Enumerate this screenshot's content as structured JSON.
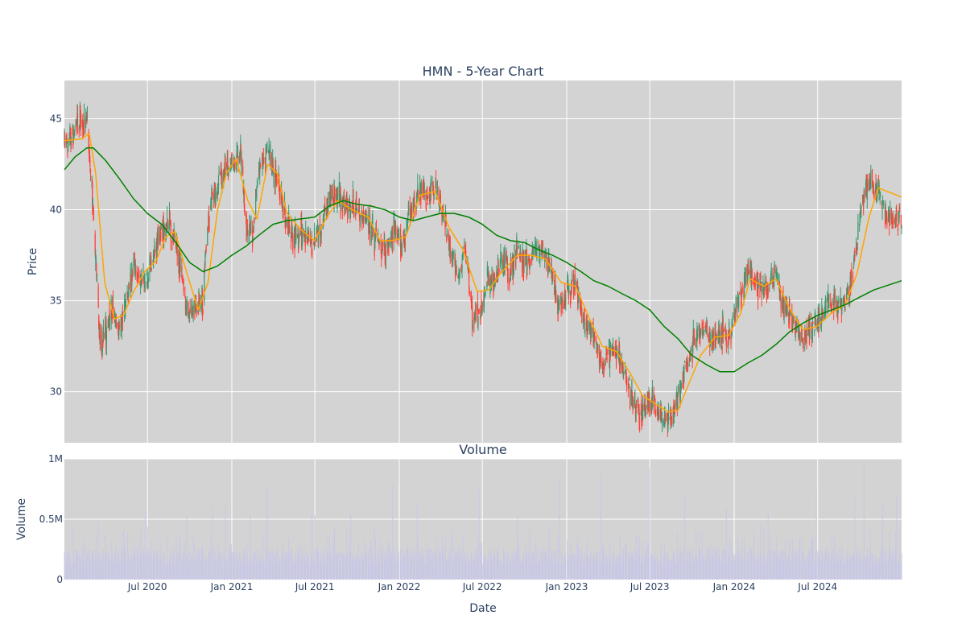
{
  "chart_data": [
    {
      "type": "candlestick",
      "title": "HMN - 5-Year Chart",
      "xlabel": "",
      "ylabel": "Price",
      "x_range": [
        "2020-01-02",
        "2024-12-31"
      ],
      "ylim": [
        27.2,
        47.1
      ],
      "y_ticks": [
        30,
        35,
        40,
        45
      ],
      "plot_background": "#d3d3d3",
      "grid": true,
      "up_color": "#3d9970",
      "down_color": "#ff4136",
      "overlays": [
        {
          "color": "#ffa500"
        },
        {
          "color": "#008000"
        }
      ],
      "price_path": [
        [
          "2020-01-02",
          43.6
        ],
        [
          "2020-01-20",
          44.2
        ],
        [
          "2020-02-05",
          44.8
        ],
        [
          "2020-02-20",
          45.1
        ],
        [
          "2020-03-02",
          41.0
        ],
        [
          "2020-03-12",
          36.0
        ],
        [
          "2020-03-20",
          32.5
        ],
        [
          "2020-04-01",
          33.5
        ],
        [
          "2020-04-15",
          34.5
        ],
        [
          "2020-05-01",
          33.2
        ],
        [
          "2020-05-15",
          35.0
        ],
        [
          "2020-06-01",
          37.0
        ],
        [
          "2020-06-15",
          36.0
        ],
        [
          "2020-07-01",
          36.2
        ],
        [
          "2020-07-15",
          37.5
        ],
        [
          "2020-08-01",
          39.0
        ],
        [
          "2020-08-20",
          39.0
        ],
        [
          "2020-09-10",
          37.0
        ],
        [
          "2020-09-25",
          34.5
        ],
        [
          "2020-10-10",
          34.3
        ],
        [
          "2020-10-30",
          35.0
        ],
        [
          "2020-11-10",
          39.5
        ],
        [
          "2020-11-25",
          41.0
        ],
        [
          "2020-12-10",
          42.0
        ],
        [
          "2021-01-01",
          42.5
        ],
        [
          "2021-01-20",
          43.0
        ],
        [
          "2021-02-01",
          39.0
        ],
        [
          "2021-02-15",
          38.5
        ],
        [
          "2021-03-01",
          42.0
        ],
        [
          "2021-03-20",
          43.5
        ],
        [
          "2021-04-10",
          41.5
        ],
        [
          "2021-04-25",
          40.0
        ],
        [
          "2021-05-10",
          38.5
        ],
        [
          "2021-06-01",
          38.8
        ],
        [
          "2021-06-20",
          38.0
        ],
        [
          "2021-07-10",
          38.5
        ],
        [
          "2021-07-30",
          40.5
        ],
        [
          "2021-08-20",
          40.8
        ],
        [
          "2021-09-10",
          40.0
        ],
        [
          "2021-09-30",
          40.2
        ],
        [
          "2021-10-20",
          39.5
        ],
        [
          "2021-11-10",
          38.2
        ],
        [
          "2021-11-30",
          37.8
        ],
        [
          "2021-12-20",
          38.8
        ],
        [
          "2022-01-10",
          38.0
        ],
        [
          "2022-01-25",
          40.0
        ],
        [
          "2022-02-10",
          41.2
        ],
        [
          "2022-03-01",
          41.0
        ],
        [
          "2022-03-20",
          41.3
        ],
        [
          "2022-04-10",
          39.5
        ],
        [
          "2022-04-25",
          37.5
        ],
        [
          "2022-05-10",
          36.0
        ],
        [
          "2022-05-25",
          38.0
        ],
        [
          "2022-06-10",
          34.0
        ],
        [
          "2022-06-25",
          34.5
        ],
        [
          "2022-07-10",
          36.0
        ],
        [
          "2022-07-25",
          35.8
        ],
        [
          "2022-08-10",
          37.0
        ],
        [
          "2022-08-30",
          36.5
        ],
        [
          "2022-09-15",
          38.0
        ],
        [
          "2022-10-01",
          37.0
        ],
        [
          "2022-10-20",
          37.5
        ],
        [
          "2022-11-10",
          37.5
        ],
        [
          "2022-12-01",
          36.5
        ],
        [
          "2022-12-15",
          34.5
        ],
        [
          "2023-01-01",
          35.5
        ],
        [
          "2023-01-20",
          36.0
        ],
        [
          "2023-02-05",
          34.0
        ],
        [
          "2023-03-01",
          33.0
        ],
        [
          "2023-03-20",
          31.5
        ],
        [
          "2023-04-10",
          32.5
        ],
        [
          "2023-05-01",
          31.5
        ],
        [
          "2023-05-20",
          30.0
        ],
        [
          "2023-06-05",
          29.0
        ],
        [
          "2023-06-20",
          29.2
        ],
        [
          "2023-07-10",
          29.5
        ],
        [
          "2023-07-30",
          28.5
        ],
        [
          "2023-08-20",
          28.7
        ],
        [
          "2023-09-10",
          30.5
        ],
        [
          "2023-09-30",
          32.5
        ],
        [
          "2023-10-20",
          33.5
        ],
        [
          "2023-11-10",
          33.0
        ],
        [
          "2023-12-01",
          33.3
        ],
        [
          "2023-12-20",
          33.0
        ],
        [
          "2024-01-10",
          35.0
        ],
        [
          "2024-01-30",
          36.5
        ],
        [
          "2024-02-20",
          36.0
        ],
        [
          "2024-03-10",
          35.5
        ],
        [
          "2024-03-30",
          36.5
        ],
        [
          "2024-04-20",
          34.5
        ],
        [
          "2024-05-10",
          34.0
        ],
        [
          "2024-05-30",
          33.0
        ],
        [
          "2024-06-20",
          33.5
        ],
        [
          "2024-07-10",
          34.2
        ],
        [
          "2024-07-30",
          35.0
        ],
        [
          "2024-08-20",
          34.5
        ],
        [
          "2024-09-10",
          36.0
        ],
        [
          "2024-09-25",
          38.0
        ],
        [
          "2024-10-05",
          40.5
        ],
        [
          "2024-10-20",
          41.5
        ],
        [
          "2024-11-10",
          41.0
        ],
        [
          "2024-11-25",
          40.0
        ],
        [
          "2024-12-15",
          39.5
        ],
        [
          "2024-12-31",
          39.5
        ]
      ],
      "short_ma": [
        [
          "2020-01-02",
          43.8
        ],
        [
          "2020-02-10",
          43.9
        ],
        [
          "2020-02-25",
          44.2
        ],
        [
          "2020-03-10",
          42.0
        ],
        [
          "2020-03-30",
          36.0
        ],
        [
          "2020-04-20",
          34.0
        ],
        [
          "2020-05-10",
          34.2
        ],
        [
          "2020-06-01",
          35.5
        ],
        [
          "2020-06-25",
          36.6
        ],
        [
          "2020-07-20",
          37.2
        ],
        [
          "2020-08-10",
          38.5
        ],
        [
          "2020-08-30",
          38.8
        ],
        [
          "2020-09-25",
          36.5
        ],
        [
          "2020-10-20",
          34.5
        ],
        [
          "2020-11-10",
          36.0
        ],
        [
          "2020-12-01",
          40.0
        ],
        [
          "2020-12-20",
          42.0
        ],
        [
          "2021-01-10",
          42.8
        ],
        [
          "2021-02-05",
          40.5
        ],
        [
          "2021-02-25",
          39.5
        ],
        [
          "2021-03-20",
          42.5
        ],
        [
          "2021-04-10",
          42.0
        ],
        [
          "2021-05-01",
          39.8
        ],
        [
          "2021-06-01",
          38.9
        ],
        [
          "2021-06-30",
          38.3
        ],
        [
          "2021-07-25",
          39.5
        ],
        [
          "2021-08-20",
          40.5
        ],
        [
          "2021-09-20",
          40.0
        ],
        [
          "2021-10-25",
          39.6
        ],
        [
          "2021-11-20",
          38.3
        ],
        [
          "2021-12-15",
          38.3
        ],
        [
          "2022-01-15",
          38.5
        ],
        [
          "2022-02-15",
          40.8
        ],
        [
          "2022-03-20",
          41.0
        ],
        [
          "2022-04-20",
          39.0
        ],
        [
          "2022-05-20",
          37.8
        ],
        [
          "2022-06-20",
          35.5
        ],
        [
          "2022-07-15",
          35.6
        ],
        [
          "2022-08-10",
          36.5
        ],
        [
          "2022-09-15",
          37.5
        ],
        [
          "2022-10-15",
          37.5
        ],
        [
          "2022-11-15",
          37.3
        ],
        [
          "2022-12-20",
          36.0
        ],
        [
          "2023-01-20",
          35.8
        ],
        [
          "2023-02-20",
          34.0
        ],
        [
          "2023-03-20",
          32.5
        ],
        [
          "2023-04-20",
          32.2
        ],
        [
          "2023-05-20",
          31.0
        ],
        [
          "2023-06-15",
          29.8
        ],
        [
          "2023-07-15",
          29.3
        ],
        [
          "2023-08-10",
          28.9
        ],
        [
          "2023-09-01",
          29.0
        ],
        [
          "2023-09-25",
          30.5
        ],
        [
          "2023-10-20",
          32.0
        ],
        [
          "2023-11-20",
          33.0
        ],
        [
          "2023-12-20",
          33.1
        ],
        [
          "2024-01-15",
          34.3
        ],
        [
          "2024-02-05",
          36.2
        ],
        [
          "2024-03-05",
          35.8
        ],
        [
          "2024-04-01",
          36.2
        ],
        [
          "2024-04-30",
          34.6
        ],
        [
          "2024-05-30",
          33.4
        ],
        [
          "2024-06-30",
          33.6
        ],
        [
          "2024-07-30",
          34.3
        ],
        [
          "2024-08-30",
          34.8
        ],
        [
          "2024-09-25",
          36.5
        ],
        [
          "2024-10-20",
          39.5
        ],
        [
          "2024-11-10",
          41.2
        ],
        [
          "2024-12-31",
          40.7
        ]
      ],
      "long_ma": [
        [
          "2020-01-02",
          42.2
        ],
        [
          "2020-01-25",
          42.9
        ],
        [
          "2020-02-20",
          43.4
        ],
        [
          "2020-03-05",
          43.4
        ],
        [
          "2020-04-01",
          42.7
        ],
        [
          "2020-05-01",
          41.7
        ],
        [
          "2020-06-01",
          40.6
        ],
        [
          "2020-07-01",
          39.8
        ],
        [
          "2020-08-01",
          39.2
        ],
        [
          "2020-09-01",
          38.2
        ],
        [
          "2020-10-01",
          37.1
        ],
        [
          "2020-10-30",
          36.6
        ],
        [
          "2020-11-30",
          36.9
        ],
        [
          "2021-01-01",
          37.5
        ],
        [
          "2021-02-01",
          38.0
        ],
        [
          "2021-03-01",
          38.6
        ],
        [
          "2021-04-01",
          39.2
        ],
        [
          "2021-05-01",
          39.4
        ],
        [
          "2021-06-01",
          39.5
        ],
        [
          "2021-07-01",
          39.6
        ],
        [
          "2021-08-01",
          40.2
        ],
        [
          "2021-09-01",
          40.5
        ],
        [
          "2021-10-01",
          40.3
        ],
        [
          "2021-11-01",
          40.2
        ],
        [
          "2021-12-01",
          40.0
        ],
        [
          "2022-01-01",
          39.6
        ],
        [
          "2022-02-01",
          39.4
        ],
        [
          "2022-03-01",
          39.6
        ],
        [
          "2022-04-01",
          39.8
        ],
        [
          "2022-05-01",
          39.8
        ],
        [
          "2022-06-01",
          39.6
        ],
        [
          "2022-07-01",
          39.2
        ],
        [
          "2022-08-01",
          38.6
        ],
        [
          "2022-09-01",
          38.3
        ],
        [
          "2022-10-01",
          38.2
        ],
        [
          "2022-11-01",
          37.8
        ],
        [
          "2022-12-01",
          37.5
        ],
        [
          "2023-01-01",
          37.1
        ],
        [
          "2023-02-01",
          36.6
        ],
        [
          "2023-03-01",
          36.1
        ],
        [
          "2023-04-01",
          35.8
        ],
        [
          "2023-05-01",
          35.4
        ],
        [
          "2023-06-01",
          35.0
        ],
        [
          "2023-07-01",
          34.5
        ],
        [
          "2023-08-01",
          33.6
        ],
        [
          "2023-09-01",
          32.9
        ],
        [
          "2023-10-01",
          32.0
        ],
        [
          "2023-11-01",
          31.5
        ],
        [
          "2023-12-01",
          31.1
        ],
        [
          "2024-01-01",
          31.1
        ],
        [
          "2024-02-01",
          31.6
        ],
        [
          "2024-03-01",
          32.0
        ],
        [
          "2024-04-01",
          32.6
        ],
        [
          "2024-05-01",
          33.3
        ],
        [
          "2024-06-01",
          33.8
        ],
        [
          "2024-07-01",
          34.2
        ],
        [
          "2024-08-01",
          34.5
        ],
        [
          "2024-09-01",
          34.8
        ],
        [
          "2024-10-01",
          35.2
        ],
        [
          "2024-11-01",
          35.6
        ],
        [
          "2024-12-31",
          36.1
        ]
      ]
    },
    {
      "type": "bar",
      "title": "Volume",
      "xlabel": "Date",
      "ylabel": "Volume",
      "ylim": [
        0,
        1000000
      ],
      "y_ticks": [
        0,
        500000,
        1000000
      ],
      "y_tick_labels": [
        "0",
        "0.5M",
        "1M"
      ],
      "bar_color": "#c8c8e6",
      "x_ticks": [
        "2020-07-01",
        "2021-01-01",
        "2021-07-01",
        "2022-01-01",
        "2022-07-01",
        "2023-01-01",
        "2023-07-01",
        "2024-01-01",
        "2024-07-01"
      ],
      "x_tick_labels": [
        "Jul 2020",
        "Jan 2021",
        "Jul 2021",
        "Jan 2022",
        "Jul 2022",
        "Jan 2023",
        "Jul 2023",
        "Jan 2024",
        "Jul 2024"
      ],
      "spikes": [
        [
          "2020-03-16",
          480000
        ],
        [
          "2020-06-26",
          580000
        ],
        [
          "2020-09-25",
          530000
        ],
        [
          "2020-11-20",
          620000
        ],
        [
          "2020-12-18",
          600000
        ],
        [
          "2021-02-10",
          540000
        ],
        [
          "2021-03-19",
          760000
        ],
        [
          "2021-06-25",
          540000
        ],
        [
          "2021-07-01",
          530000
        ],
        [
          "2021-09-17",
          540000
        ],
        [
          "2021-12-17",
          800000
        ],
        [
          "2022-02-09",
          650000
        ],
        [
          "2022-06-24",
          750000
        ],
        [
          "2022-09-16",
          520000
        ],
        [
          "2022-12-16",
          850000
        ],
        [
          "2023-03-17",
          880000
        ],
        [
          "2023-06-30",
          920000
        ],
        [
          "2023-09-15",
          710000
        ],
        [
          "2023-12-15",
          590000
        ],
        [
          "2024-03-15",
          560000
        ],
        [
          "2024-06-28",
          750000
        ],
        [
          "2024-09-20",
          680000
        ],
        [
          "2024-10-10",
          950000
        ],
        [
          "2024-11-20",
          620000
        ],
        [
          "2024-12-20",
          700000
        ]
      ]
    }
  ]
}
